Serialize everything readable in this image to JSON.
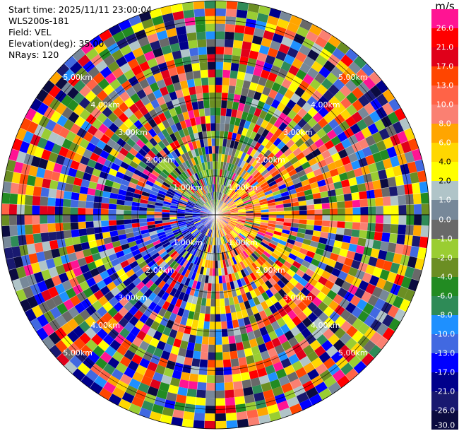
{
  "info": {
    "start_time": "Start time: 2025/11/11 23:00:04",
    "station": "WLS200s-181",
    "field": "Field: VEL",
    "elevation": "Elevation(deg): 35.00",
    "nrays": "NRays: 120"
  },
  "colorbar": {
    "unit": "m/s",
    "levels": [
      {
        "label": "26.0",
        "color": "#ff1493"
      },
      {
        "label": "21.0",
        "color": "#ff0000"
      },
      {
        "label": "17.0",
        "color": "#e0001a"
      },
      {
        "label": "13.0",
        "color": "#ff4500"
      },
      {
        "label": "10.0",
        "color": "#ff6347"
      },
      {
        "label": "8.0",
        "color": "#fa8072"
      },
      {
        "label": "6.0",
        "color": "#ffa500"
      },
      {
        "label": "4.0",
        "color": "#ffd700"
      },
      {
        "label": "2.0",
        "color": "#ffff00"
      },
      {
        "label": "1.0",
        "color": "#b0c4c8"
      },
      {
        "label": "0.0",
        "color": "#778899"
      },
      {
        "label": "-1.0",
        "color": "#696969"
      },
      {
        "label": "-2.0",
        "color": "#9acd32"
      },
      {
        "label": "-4.0",
        "color": "#6b8e23"
      },
      {
        "label": "-6.0",
        "color": "#228b22"
      },
      {
        "label": "-8.0",
        "color": "#2e8b57"
      },
      {
        "label": "-10.0",
        "color": "#1e90ff"
      },
      {
        "label": "-13.0",
        "color": "#4169e1"
      },
      {
        "label": "-17.0",
        "color": "#0000ff"
      },
      {
        "label": "-21.0",
        "color": "#00008b"
      },
      {
        "label": "-26.0",
        "color": "#191970"
      },
      {
        "label": "-30.0",
        "color": "#0b0b40"
      }
    ]
  },
  "chart_data": {
    "type": "heatmap",
    "projection": "polar PPI",
    "field": "VEL",
    "units": "m/s",
    "nrays": 120,
    "elevation_deg": 35.0,
    "max_range_km": 5.5,
    "range_ring_labels": [
      "1.00km",
      "2.00km",
      "3.00km",
      "4.00km",
      "5.00km"
    ],
    "range_rings_km": [
      1,
      2,
      3,
      4,
      5
    ],
    "ring_label_bearings_deg": [
      45,
      135,
      225,
      315
    ],
    "pattern": "dominantly negative (blue) velocities to the west and southwest, positive (orange/yellow) to the east near the center, noisy outer gates"
  }
}
